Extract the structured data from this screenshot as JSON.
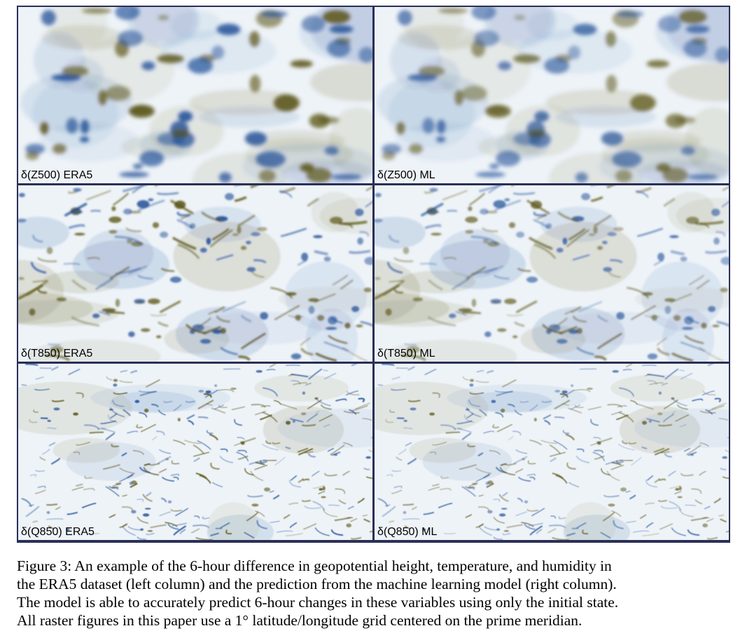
{
  "figure": {
    "panels": [
      {
        "label": "δ(Z500) ERA5",
        "variable": "Z500",
        "source": "ERA5",
        "pattern": "smooth"
      },
      {
        "label": "δ(Z500) ML",
        "variable": "Z500",
        "source": "ML",
        "pattern": "smooth"
      },
      {
        "label": "δ(T850) ERA5",
        "variable": "T850",
        "source": "ERA5",
        "pattern": "medium"
      },
      {
        "label": "δ(T850) ML",
        "variable": "T850",
        "source": "ML",
        "pattern": "medium"
      },
      {
        "label": "δ(Q850) ERA5",
        "variable": "Q850",
        "source": "ERA5",
        "pattern": "fine"
      },
      {
        "label": "δ(Q850) ML",
        "variable": "Q850",
        "source": "ML",
        "pattern": "fine"
      }
    ],
    "colors": {
      "negative": "#1f4e96",
      "neutral": "#eef3f8",
      "positive": "#5a5415",
      "border": "#2b2f57"
    }
  },
  "caption": {
    "lines": [
      "Figure 3: An example of the 6-hour difference in geopotential height, temperature, and humidity in",
      "the ERA5 dataset (left column) and the prediction from the machine learning model (right column).",
      "The model is able to accurately predict 6-hour changes in these variables using only the initial state.",
      "All raster figures in this paper use a 1° latitude/longitude grid centered on the prime meridian."
    ]
  }
}
